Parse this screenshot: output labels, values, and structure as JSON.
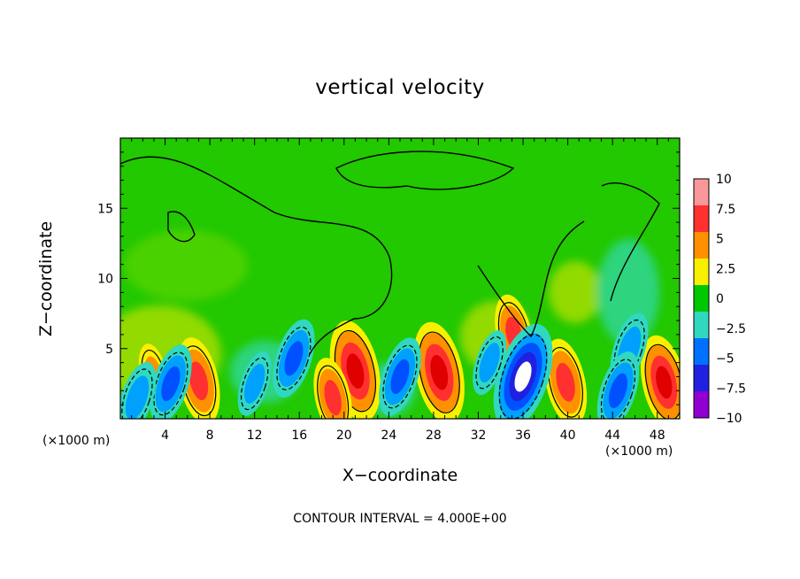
{
  "chart_data": {
    "type": "heatmap",
    "title": "vertical velocity",
    "xlabel": "X−coordinate",
    "ylabel": "Z−coordinate",
    "x_unit_label": "(×1000 m)",
    "footer": "CONTOUR INTERVAL = 4.000E+00",
    "xlim": [
      0,
      50
    ],
    "ylim": [
      0,
      20
    ],
    "x_ticks": [
      "4",
      "8",
      "12",
      "16",
      "20",
      "24",
      "28",
      "32",
      "36",
      "40",
      "44",
      "48"
    ],
    "y_ticks": [
      "5",
      "10",
      "15"
    ],
    "colorbar": {
      "ticks": [
        "10",
        "7.5",
        "5",
        "2.5",
        "0",
        "−2.5",
        "−5",
        "−7.5",
        "−10"
      ],
      "colors": [
        "#f89898",
        "#ff3030",
        "#ff9000",
        "#f8f000",
        "#00c800",
        "#30d8c0",
        "#0070ff",
        "#2020e0",
        "#9000d0"
      ]
    },
    "features": [
      {
        "x": 7,
        "z": 2.7,
        "w": 6,
        "sign": "updraft"
      },
      {
        "x": 21,
        "z": 3.4,
        "w": 8,
        "sign": "updraft"
      },
      {
        "x": 28.5,
        "z": 3.3,
        "w": 8,
        "sign": "updraft"
      },
      {
        "x": 39.8,
        "z": 2.6,
        "w": 6,
        "sign": "updraft"
      },
      {
        "x": 48.6,
        "z": 2.6,
        "w": 7,
        "sign": "updraft"
      },
      {
        "x": 35.2,
        "z": 6,
        "w": 5,
        "sign": "updraft"
      },
      {
        "x": 19,
        "z": 1.5,
        "w": 5,
        "sign": "updraft"
      },
      {
        "x": 3,
        "z": 3,
        "w": 3,
        "sign": "updraft"
      },
      {
        "x": 15.5,
        "z": 4.3,
        "w": -5,
        "sign": "downdraft"
      },
      {
        "x": 25,
        "z": 3,
        "w": -5,
        "sign": "downdraft"
      },
      {
        "x": 36,
        "z": 3,
        "w": -9,
        "sign": "downdraft"
      },
      {
        "x": 45.5,
        "z": 5,
        "w": -4,
        "sign": "downdraft"
      },
      {
        "x": 44.5,
        "z": 2,
        "w": -5,
        "sign": "downdraft"
      },
      {
        "x": 4.5,
        "z": 2.5,
        "w": -5,
        "sign": "downdraft"
      },
      {
        "x": 1.5,
        "z": 1.5,
        "w": -4,
        "sign": "downdraft"
      },
      {
        "x": 12,
        "z": 2.5,
        "w": -3,
        "sign": "downdraft"
      },
      {
        "x": 33,
        "z": 4,
        "w": -3,
        "sign": "downdraft"
      }
    ]
  }
}
